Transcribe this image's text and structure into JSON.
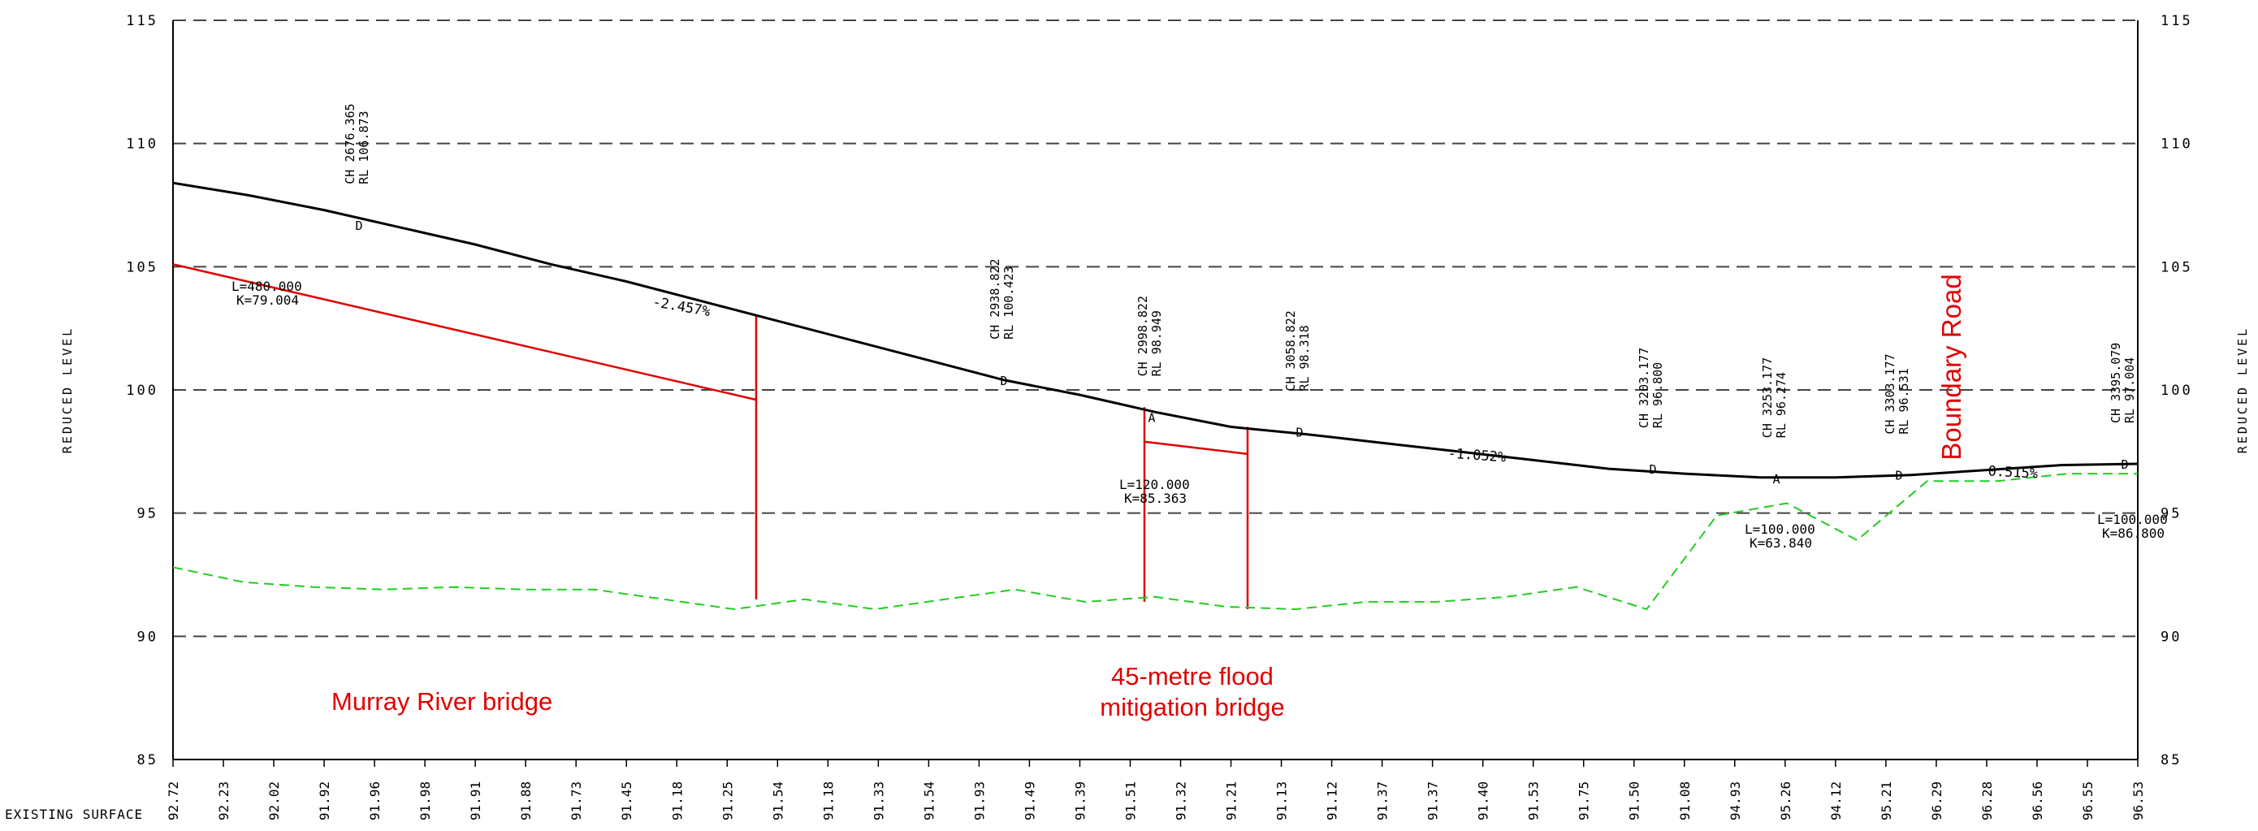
{
  "chart_data": {
    "type": "line",
    "title": "",
    "ylabel": "REDUCED LEVEL",
    "ylim": [
      85,
      115
    ],
    "y_ticks": [
      "85",
      "90",
      "95",
      "100",
      "105",
      "110",
      "115"
    ],
    "x_axis_title": "EXISTING SURFACE",
    "existing_surface_labels": [
      "92.72",
      "92.23",
      "92.02",
      "91.92",
      "91.96",
      "91.98",
      "91.91",
      "91.88",
      "91.73",
      "91.45",
      "91.18",
      "91.25",
      "91.54",
      "91.18",
      "91.33",
      "91.54",
      "91.93",
      "91.49",
      "91.39",
      "91.51",
      "91.32",
      "91.21",
      "91.13",
      "91.12",
      "91.37",
      "91.37",
      "91.40",
      "91.53",
      "91.75",
      "91.50",
      "91.08",
      "94.93",
      "95.26",
      "94.12",
      "95.21",
      "96.29",
      "96.28",
      "96.56",
      "96.55",
      "96.53"
    ],
    "grid": true,
    "series": [
      {
        "values": [
          108.4,
          107.9,
          107.3,
          106.6,
          105.9,
          105.1,
          104.4,
          103.6,
          102.8,
          102.0,
          101.2,
          100.4,
          99.8,
          99.1,
          98.5,
          98.2,
          97.85,
          97.5,
          97.15,
          96.8,
          96.6,
          96.45,
          96.45,
          96.55,
          96.75,
          96.95,
          97.0
        ]
      },
      {
        "values": [
          92.8,
          92.2,
          92.0,
          91.9,
          92.0,
          91.9,
          91.9,
          91.5,
          91.1,
          91.5,
          91.1,
          91.5,
          91.9,
          91.4,
          91.6,
          91.2,
          91.1,
          91.4,
          91.4,
          91.6,
          92.0,
          91.1,
          94.9,
          95.4,
          93.9,
          96.3,
          96.3,
          96.6,
          96.6
        ]
      }
    ],
    "control_points": [
      {
        "ch": "2676.365",
        "rl": "106.873",
        "tag": "D"
      },
      {
        "ch": "2938.822",
        "rl": "100.423",
        "tag": "D"
      },
      {
        "ch": "2998.822",
        "rl": "98.949",
        "tag": "A"
      },
      {
        "ch": "3058.822",
        "rl": "98.318",
        "tag": "D"
      },
      {
        "ch": "3203.177",
        "rl": "96.800",
        "tag": "D"
      },
      {
        "ch": "3253.177",
        "rl": "96.274",
        "tag": "A"
      },
      {
        "ch": "3303.177",
        "rl": "96.531",
        "tag": "D"
      },
      {
        "ch": "3395.079",
        "rl": "97.004",
        "tag": "D"
      }
    ],
    "grades": [
      "-2.457%",
      "-1.052%",
      "0.515%"
    ],
    "curves": [
      {
        "l": "L=480.000",
        "k": "K=79.004"
      },
      {
        "l": "L=120.000",
        "k": "K=85.363"
      },
      {
        "l": "L=100.000",
        "k": "K=63.840"
      },
      {
        "l": "L=100.000",
        "k": "K=86.800"
      }
    ],
    "annotations": [
      "Murray River bridge",
      "45-metre flood",
      "mitigation bridge",
      "Boundary Road"
    ],
    "ch_prefix": "CH",
    "rl_prefix": "RL"
  },
  "colors": {
    "design": "#000000",
    "surface": "#22cc22",
    "structures": "#e00000",
    "grid": "#444444"
  }
}
